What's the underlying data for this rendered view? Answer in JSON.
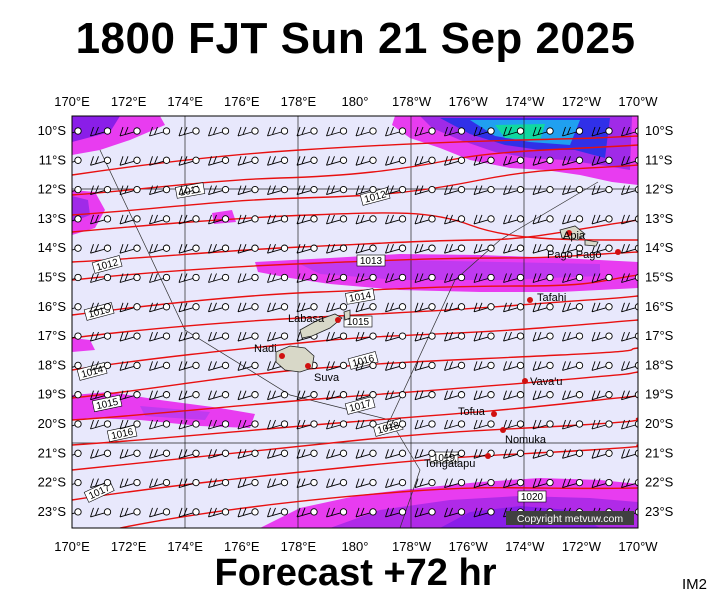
{
  "title": "1800 FJT Sun 21 Sep 2025",
  "footer": "Forecast +72 hr",
  "corner_id": "IM2",
  "copyright": "Copyright metvuw.com",
  "lon_labels": [
    "170°E",
    "172°E",
    "174°E",
    "176°E",
    "178°E",
    "180°",
    "178°W",
    "176°W",
    "174°W",
    "172°W",
    "170°W"
  ],
  "lat_labels": [
    "10°S",
    "11°S",
    "12°S",
    "13°S",
    "14°S",
    "15°S",
    "16°S",
    "17°S",
    "18°S",
    "19°S",
    "20°S",
    "21°S",
    "22°S",
    "23°S"
  ],
  "places": [
    {
      "name": "Apia"
    },
    {
      "name": "Pago Pago"
    },
    {
      "name": "Tafahi"
    },
    {
      "name": "Labasa"
    },
    {
      "name": "Nadi"
    },
    {
      "name": "Suva"
    },
    {
      "name": "Vava'u"
    },
    {
      "name": "Tofua"
    },
    {
      "name": "Nomuka"
    },
    {
      "name": "Tongatapu"
    }
  ],
  "isobars": [
    {
      "value": "1011"
    },
    {
      "value": "1012"
    },
    {
      "value": "1012"
    },
    {
      "value": "1013"
    },
    {
      "value": "1013"
    },
    {
      "value": "1014"
    },
    {
      "value": "1014"
    },
    {
      "value": "1015"
    },
    {
      "value": "1015"
    },
    {
      "value": "1016"
    },
    {
      "value": "1016"
    },
    {
      "value": "1017"
    },
    {
      "value": "1017"
    },
    {
      "value": "1018"
    },
    {
      "value": "1019"
    },
    {
      "value": "1020"
    }
  ],
  "colors": {
    "background": "#e8e8fc",
    "isobar": "#e81010",
    "rain_light": "#e83cf0",
    "rain_mid": "#8a1ee8",
    "rain_heavy": "#2020e0",
    "rain_max": "#10d0a0"
  }
}
